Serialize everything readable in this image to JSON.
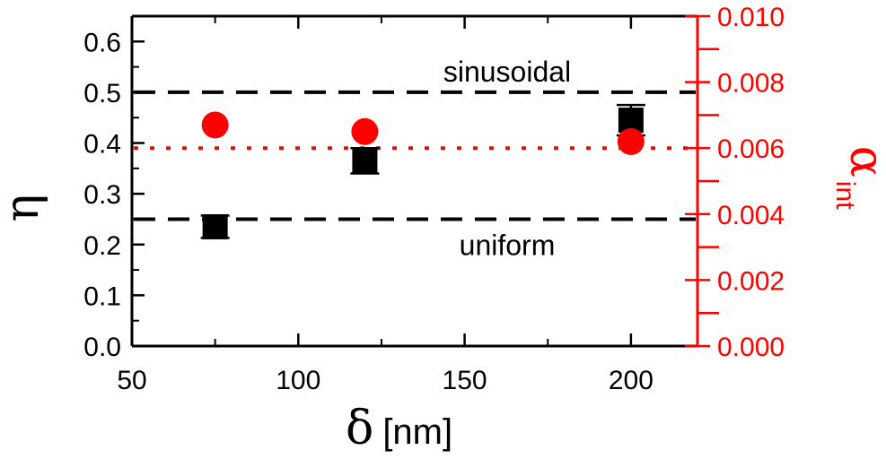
{
  "chart_data": {
    "type": "scatter",
    "x_axis": {
      "label": "δ",
      "unit": "[nm]",
      "range": [
        50,
        220
      ],
      "ticks": [
        50,
        100,
        150,
        200
      ],
      "tick_labels": [
        "50",
        "100",
        "150",
        "200"
      ]
    },
    "y_axis_left": {
      "label": "η",
      "range": [
        0.0,
        0.65
      ],
      "ticks": [
        0.0,
        0.1,
        0.2,
        0.3,
        0.4,
        0.5,
        0.6
      ],
      "tick_labels": [
        "0.0",
        "0.1",
        "0.2",
        "0.3",
        "0.4",
        "0.5",
        "0.6"
      ],
      "color": "#000000"
    },
    "y_axis_right": {
      "label": "α",
      "label_subscript": "int",
      "range": [
        0.0,
        0.01
      ],
      "ticks": [
        0.0,
        0.002,
        0.004,
        0.006,
        0.008,
        0.01
      ],
      "tick_labels": [
        "0.000",
        "0.002",
        "0.004",
        "0.006",
        "0.008",
        "0.010"
      ],
      "color": "#ff0000"
    },
    "series": [
      {
        "axis": "left",
        "marker": "square",
        "color": "#000000",
        "x": [
          75,
          120,
          200
        ],
        "y": [
          0.235,
          0.365,
          0.445
        ],
        "yerr": [
          0.022,
          0.025,
          0.03
        ]
      },
      {
        "axis": "right",
        "marker": "circle",
        "color": "#ff0000",
        "x": [
          75,
          120,
          200
        ],
        "y": [
          0.0067,
          0.0065,
          0.0062
        ]
      }
    ],
    "reference_lines": [
      {
        "axis": "left",
        "y": 0.5,
        "style": "dashed",
        "color": "#000000",
        "label": "sinusoidal"
      },
      {
        "axis": "left",
        "y": 0.25,
        "style": "dashed",
        "color": "#000000",
        "label": "uniform"
      },
      {
        "axis": "right",
        "y": 0.006,
        "style": "dotted",
        "color": "#ff0000"
      }
    ],
    "grid": false,
    "legend": "none"
  }
}
